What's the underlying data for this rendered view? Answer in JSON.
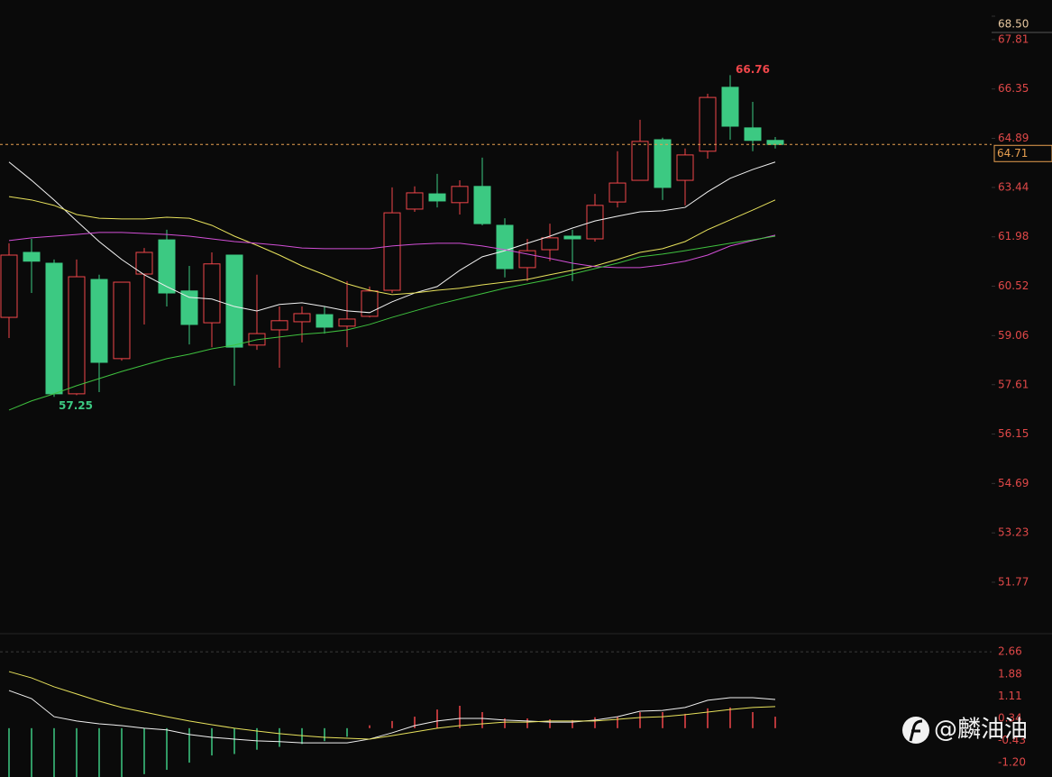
{
  "chart_data": [
    {
      "type": "candlestick",
      "open": [
        59.6,
        61.52,
        61.2,
        57.34,
        60.72,
        58.38,
        60.88,
        61.89,
        60.38,
        59.44,
        61.44,
        58.78,
        59.23,
        59.47,
        59.68,
        59.34,
        59.63,
        60.4,
        62.8,
        63.25,
        62.99,
        63.47,
        62.32,
        61.07,
        61.6,
        62.0,
        61.92,
        63.01,
        63.65,
        64.85,
        63.65,
        64.51,
        66.4,
        65.2,
        64.83
      ],
      "high": [
        61.79,
        61.92,
        61.31,
        61.31,
        60.86,
        60.64,
        61.65,
        62.19,
        61.12,
        61.52,
        61.44,
        60.86,
        59.92,
        59.92,
        59.92,
        60.67,
        60.51,
        63.44,
        63.47,
        63.84,
        63.65,
        64.32,
        62.53,
        61.92,
        62.37,
        62.19,
        63.25,
        64.51,
        65.44,
        64.91,
        64.59,
        66.21,
        66.76,
        65.97,
        64.93
      ],
      "low": [
        58.99,
        60.32,
        57.25,
        57.3,
        57.39,
        58.32,
        59.39,
        59.92,
        58.8,
        58.72,
        57.58,
        58.64,
        58.11,
        58.86,
        59.12,
        58.72,
        59.6,
        60.32,
        62.72,
        62.85,
        62.64,
        62.32,
        60.78,
        60.67,
        61.26,
        60.67,
        61.84,
        62.85,
        63.65,
        63.07,
        62.91,
        64.29,
        64.85,
        64.51,
        64.59
      ],
      "close": [
        61.44,
        61.26,
        57.34,
        60.8,
        58.27,
        60.64,
        61.52,
        60.32,
        59.39,
        61.18,
        58.72,
        59.12,
        59.5,
        59.71,
        59.31,
        59.55,
        60.38,
        62.69,
        63.28,
        63.04,
        63.47,
        62.37,
        61.04,
        61.57,
        61.95,
        61.92,
        62.91,
        63.57,
        64.8,
        63.44,
        64.4,
        66.1,
        65.25,
        64.83,
        64.71
      ],
      "up_color": "#f0464a",
      "down_color": "#3cc982",
      "series": [
        {
          "color": "#f2f2f2",
          "values": [
            64.19,
            63.65,
            63.07,
            62.45,
            61.84,
            61.31,
            60.86,
            60.51,
            60.19,
            60.14,
            59.92,
            59.79,
            59.98,
            60.03,
            59.92,
            59.79,
            59.74,
            60.06,
            60.32,
            60.51,
            60.99,
            61.39,
            61.57,
            61.79,
            62.0,
            62.24,
            62.45,
            62.59,
            62.72,
            62.75,
            62.85,
            63.31,
            63.71,
            63.97,
            64.19
          ]
        },
        {
          "color": "#e8e25c",
          "values": [
            63.17,
            63.07,
            62.91,
            62.64,
            62.53,
            62.51,
            62.51,
            62.56,
            62.53,
            62.32,
            62.0,
            61.73,
            61.44,
            61.12,
            60.86,
            60.59,
            60.4,
            60.27,
            60.32,
            60.4,
            60.46,
            60.56,
            60.64,
            60.72,
            60.86,
            60.99,
            61.12,
            61.31,
            61.52,
            61.63,
            61.84,
            62.19,
            62.48,
            62.77,
            63.07
          ]
        },
        {
          "color": "#d24fd6",
          "values": [
            61.87,
            61.95,
            62.0,
            62.05,
            62.11,
            62.11,
            62.08,
            62.05,
            62.0,
            61.92,
            61.84,
            61.79,
            61.73,
            61.65,
            61.63,
            61.63,
            61.63,
            61.71,
            61.76,
            61.79,
            61.79,
            61.71,
            61.6,
            61.47,
            61.34,
            61.2,
            61.1,
            61.07,
            61.07,
            61.15,
            61.26,
            61.44,
            61.71,
            61.87,
            62.03
          ]
        },
        {
          "color": "#3fc23f",
          "values": [
            56.86,
            57.13,
            57.34,
            57.58,
            57.79,
            58.0,
            58.19,
            58.38,
            58.51,
            58.67,
            58.78,
            58.94,
            59.02,
            59.1,
            59.15,
            59.23,
            59.39,
            59.6,
            59.79,
            59.98,
            60.14,
            60.3,
            60.46,
            60.59,
            60.72,
            60.88,
            61.04,
            61.2,
            61.39,
            61.47,
            61.57,
            61.68,
            61.79,
            61.89,
            62.0
          ]
        }
      ],
      "last_price": 64.71,
      "ylim": [
        50.25,
        68.98
      ],
      "yticks": [
        {
          "value": 68.5,
          "label": "68.50"
        },
        67.81,
        66.35,
        64.89,
        63.44,
        61.98,
        60.52,
        59.06,
        57.61,
        56.15,
        54.69,
        53.23,
        51.77
      ]
    },
    {
      "type": "macd",
      "values": [
        -1.75,
        -1.75,
        -1.75,
        -1.75,
        -1.75,
        -1.7,
        -1.6,
        -1.45,
        -1.2,
        -0.95,
        -0.9,
        -0.75,
        -0.65,
        -0.55,
        -0.45,
        -0.3,
        0.1,
        0.25,
        0.4,
        0.65,
        0.78,
        0.56,
        0.34,
        0.34,
        0.31,
        0.28,
        0.38,
        0.4,
        0.56,
        0.56,
        0.5,
        0.69,
        0.72,
        0.56,
        0.4
      ],
      "up_color": "#f0464a",
      "down_color": "#3cc982",
      "series": [
        {
          "color": "#f2f2f2",
          "values": [
            1.31,
            1.03,
            0.4,
            0.25,
            0.15,
            0.09,
            0,
            -0.06,
            -0.22,
            -0.32,
            -0.38,
            -0.44,
            -0.47,
            -0.51,
            -0.51,
            -0.51,
            -0.38,
            -0.16,
            0.09,
            0.25,
            0.34,
            0.34,
            0.28,
            0.25,
            0.21,
            0.21,
            0.28,
            0.4,
            0.59,
            0.62,
            0.72,
            0.97,
            1.06,
            1.06,
            1.0
          ]
        },
        {
          "color": "#e8e25c",
          "values": [
            1.97,
            1.75,
            1.44,
            1.19,
            0.94,
            0.72,
            0.56,
            0.4,
            0.25,
            0.12,
            0,
            -0.1,
            -0.19,
            -0.26,
            -0.32,
            -0.35,
            -0.38,
            -0.26,
            -0.13,
            0,
            0.09,
            0.15,
            0.21,
            0.21,
            0.25,
            0.25,
            0.25,
            0.31,
            0.37,
            0.4,
            0.47,
            0.56,
            0.65,
            0.72,
            0.75
          ]
        }
      ],
      "ylim": [
        -1.7,
        3.29
      ],
      "yticks": [
        2.66,
        1.88,
        1.11,
        0.34,
        -0.43,
        {
          "value": -1.2,
          "label": "-1.20"
        }
      ]
    }
  ],
  "watermark": "@麟油油"
}
